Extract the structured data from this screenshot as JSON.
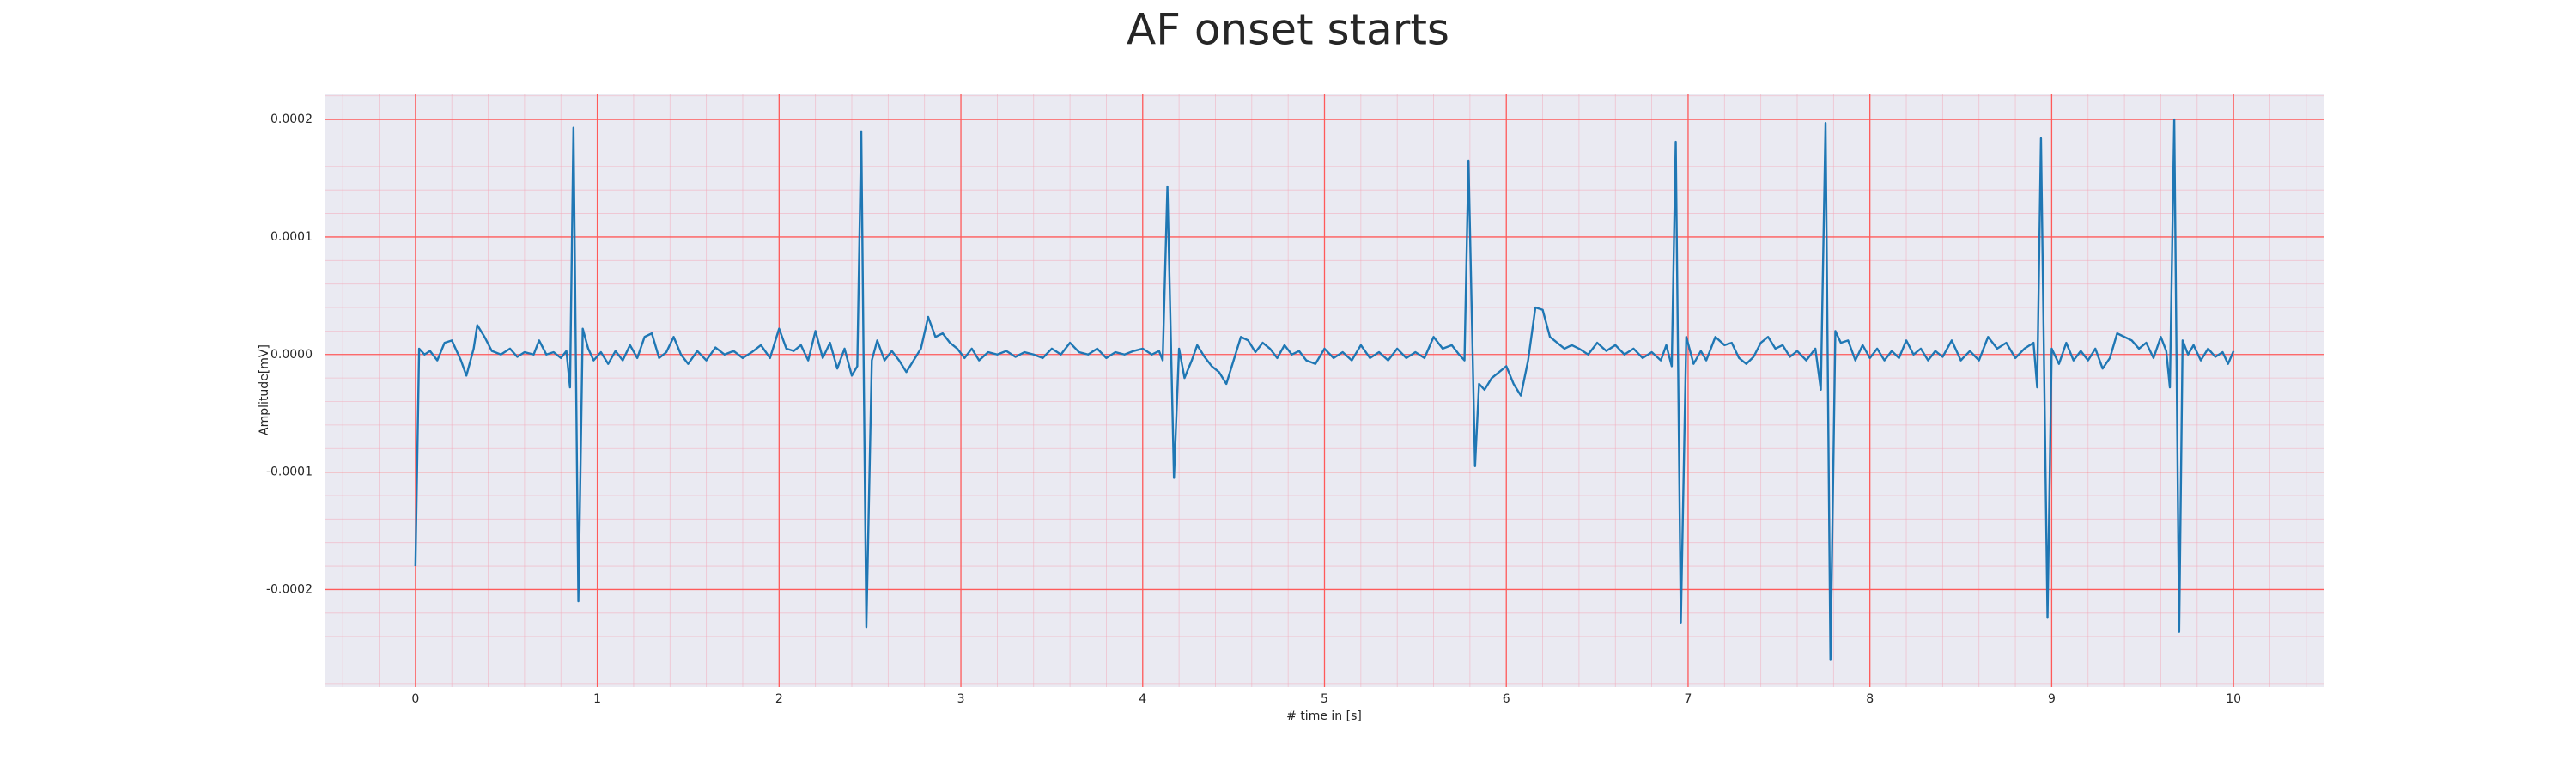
{
  "chart_data": {
    "type": "line",
    "title": "AF onset starts",
    "xlabel": "# time in [s]",
    "ylabel": "Amplitude[mV]",
    "xlim": [
      -0.5,
      10.5
    ],
    "xticks": [
      0,
      1,
      2,
      3,
      4,
      5,
      6,
      7,
      8,
      9,
      10
    ],
    "ylim": [
      -0.000283,
      0.000222
    ],
    "yticks": [
      -0.0002,
      -0.0001,
      {
        "value": 0,
        "label": "0.0000"
      },
      0.0001,
      0.0002
    ],
    "grid": true,
    "minor_grid": true,
    "series": [
      {
        "color": "#1f77b4",
        "x": [
          0,
          0.02,
          0.05,
          0.08,
          0.12,
          0.16,
          0.2,
          0.25,
          0.28,
          0.32,
          0.34,
          0.38,
          0.42,
          0.47,
          0.52,
          0.56,
          0.6,
          0.65,
          0.68,
          0.72,
          0.76,
          0.8,
          0.83,
          0.85,
          0.869,
          0.896,
          0.92,
          0.95,
          0.98,
          1.02,
          1.06,
          1.1,
          1.14,
          1.18,
          1.22,
          1.26,
          1.3,
          1.34,
          1.38,
          1.42,
          1.46,
          1.5,
          1.55,
          1.6,
          1.65,
          1.7,
          1.75,
          1.8,
          1.85,
          1.9,
          1.95,
          2.0,
          2.04,
          2.08,
          2.12,
          2.16,
          2.2,
          2.24,
          2.28,
          2.32,
          2.36,
          2.4,
          2.43,
          2.452,
          2.48,
          2.51,
          2.54,
          2.58,
          2.62,
          2.66,
          2.7,
          2.74,
          2.78,
          2.82,
          2.86,
          2.9,
          2.94,
          2.98,
          3.02,
          3.06,
          3.1,
          3.15,
          3.2,
          3.25,
          3.3,
          3.35,
          3.4,
          3.45,
          3.5,
          3.55,
          3.6,
          3.65,
          3.7,
          3.75,
          3.8,
          3.85,
          3.9,
          3.95,
          4.0,
          4.05,
          4.09,
          4.11,
          4.136,
          4.172,
          4.2,
          4.23,
          4.27,
          4.3,
          4.34,
          4.38,
          4.42,
          4.46,
          4.5,
          4.54,
          4.58,
          4.62,
          4.66,
          4.7,
          4.74,
          4.78,
          4.82,
          4.86,
          4.9,
          4.95,
          5.0,
          5.05,
          5.1,
          5.15,
          5.2,
          5.25,
          5.3,
          5.35,
          5.4,
          5.45,
          5.5,
          5.55,
          5.6,
          5.65,
          5.7,
          5.74,
          5.77,
          5.792,
          5.828,
          5.85,
          5.88,
          5.92,
          5.96,
          6.0,
          6.04,
          6.08,
          6.12,
          6.16,
          6.2,
          6.24,
          6.28,
          6.32,
          6.36,
          6.4,
          6.45,
          6.5,
          6.55,
          6.6,
          6.65,
          6.7,
          6.75,
          6.8,
          6.85,
          6.88,
          6.91,
          6.932,
          6.96,
          6.99,
          7.03,
          7.07,
          7.1,
          7.15,
          7.2,
          7.24,
          7.28,
          7.32,
          7.36,
          7.4,
          7.44,
          7.48,
          7.52,
          7.56,
          7.6,
          7.65,
          7.7,
          7.73,
          7.756,
          7.783,
          7.81,
          7.84,
          7.88,
          7.92,
          7.96,
          8.0,
          8.04,
          8.08,
          8.12,
          8.16,
          8.2,
          8.24,
          8.28,
          8.32,
          8.36,
          8.4,
          8.45,
          8.5,
          8.55,
          8.6,
          8.65,
          8.7,
          8.75,
          8.8,
          8.85,
          8.9,
          8.92,
          8.941,
          8.977,
          9.0,
          9.04,
          9.08,
          9.12,
          9.16,
          9.2,
          9.24,
          9.28,
          9.32,
          9.36,
          9.4,
          9.44,
          9.48,
          9.52,
          9.56,
          9.6,
          9.63,
          9.65,
          9.674,
          9.701,
          9.72,
          9.75,
          9.78,
          9.82,
          9.86,
          9.9,
          9.94,
          9.97,
          10.0
        ],
        "values": [
          -0.00018,
          5e-06,
          0.0,
          3e-06,
          -5e-06,
          1e-05,
          1.2e-05,
          -5e-06,
          -1.8e-05,
          5e-06,
          2.5e-05,
          1.5e-05,
          3e-06,
          0.0,
          5e-06,
          -2e-06,
          2e-06,
          0.0,
          1.2e-05,
          0.0,
          2e-06,
          -3e-06,
          3e-06,
          -2.8e-05,
          0.000193,
          -0.00021,
          2.2e-05,
          5e-06,
          -5e-06,
          2e-06,
          -8e-06,
          3e-06,
          -5e-06,
          8e-06,
          -3e-06,
          1.5e-05,
          1.8e-05,
          -3e-06,
          2e-06,
          1.5e-05,
          0.0,
          -8e-06,
          3e-06,
          -5e-06,
          6e-06,
          0.0,
          3e-06,
          -3e-06,
          2e-06,
          8e-06,
          -3e-06,
          2.2e-05,
          5e-06,
          3e-06,
          8e-06,
          -5e-06,
          2e-05,
          -3e-06,
          1e-05,
          -1.2e-05,
          5e-06,
          -1.8e-05,
          -1e-05,
          0.00019,
          -0.000232,
          -5e-06,
          1.2e-05,
          -5e-06,
          3e-06,
          -5e-06,
          -1.5e-05,
          -5e-06,
          5e-06,
          3.2e-05,
          1.5e-05,
          1.8e-05,
          1e-05,
          5e-06,
          -3e-06,
          5e-06,
          -5e-06,
          2e-06,
          0.0,
          3e-06,
          -2e-06,
          2e-06,
          0.0,
          -3e-06,
          5e-06,
          0.0,
          1e-05,
          2e-06,
          0.0,
          5e-06,
          -3e-06,
          2e-06,
          0.0,
          3e-06,
          5e-06,
          0.0,
          3e-06,
          -5e-06,
          0.000143,
          -0.000105,
          5e-06,
          -2e-05,
          -5e-06,
          8e-06,
          -2e-06,
          -1e-05,
          -1.5e-05,
          -2.5e-05,
          -5e-06,
          1.5e-05,
          1.2e-05,
          2e-06,
          1e-05,
          5e-06,
          -3e-06,
          8e-06,
          0.0,
          3e-06,
          -5e-06,
          -8e-06,
          5e-06,
          -3e-06,
          2e-06,
          -5e-06,
          8e-06,
          -3e-06,
          2e-06,
          -5e-06,
          5e-06,
          -3e-06,
          2e-06,
          -3e-06,
          1.5e-05,
          5e-06,
          8e-06,
          0.0,
          -5e-06,
          0.000165,
          -9.5e-05,
          -2.5e-05,
          -3e-05,
          -2e-05,
          -1.5e-05,
          -1e-05,
          -2.5e-05,
          -3.5e-05,
          -5e-06,
          4e-05,
          3.8e-05,
          1.5e-05,
          1e-05,
          5e-06,
          8e-06,
          5e-06,
          0.0,
          1e-05,
          3e-06,
          8e-06,
          0.0,
          5e-06,
          -3e-06,
          2e-06,
          -5e-06,
          8e-06,
          -1e-05,
          0.000181,
          -0.000228,
          1.5e-05,
          -8e-06,
          3e-06,
          -5e-06,
          1.5e-05,
          8e-06,
          1e-05,
          -3e-06,
          -8e-06,
          -2e-06,
          1e-05,
          1.5e-05,
          5e-06,
          8e-06,
          -2e-06,
          3e-06,
          -5e-06,
          5e-06,
          -3e-05,
          0.000197,
          -0.00026,
          2e-05,
          1e-05,
          1.2e-05,
          -5e-06,
          8e-06,
          -3e-06,
          5e-06,
          -5e-06,
          3e-06,
          -3e-06,
          1.2e-05,
          0.0,
          5e-06,
          -5e-06,
          3e-06,
          -2e-06,
          1.2e-05,
          -5e-06,
          3e-06,
          -5e-06,
          1.5e-05,
          5e-06,
          1e-05,
          -3e-06,
          5e-06,
          1e-05,
          -2.8e-05,
          0.000184,
          -0.000224,
          5e-06,
          -8e-06,
          1e-05,
          -5e-06,
          3e-06,
          -5e-06,
          5e-06,
          -1.2e-05,
          -3e-06,
          1.8e-05,
          1.5e-05,
          1.2e-05,
          5e-06,
          1e-05,
          -3e-06,
          1.5e-05,
          3e-06,
          -2.8e-05,
          0.0002,
          -0.000236,
          1.2e-05,
          0.0,
          8e-06,
          -5e-06,
          5e-06,
          -2e-06,
          2e-06,
          -8e-06,
          3e-06
        ]
      }
    ]
  }
}
